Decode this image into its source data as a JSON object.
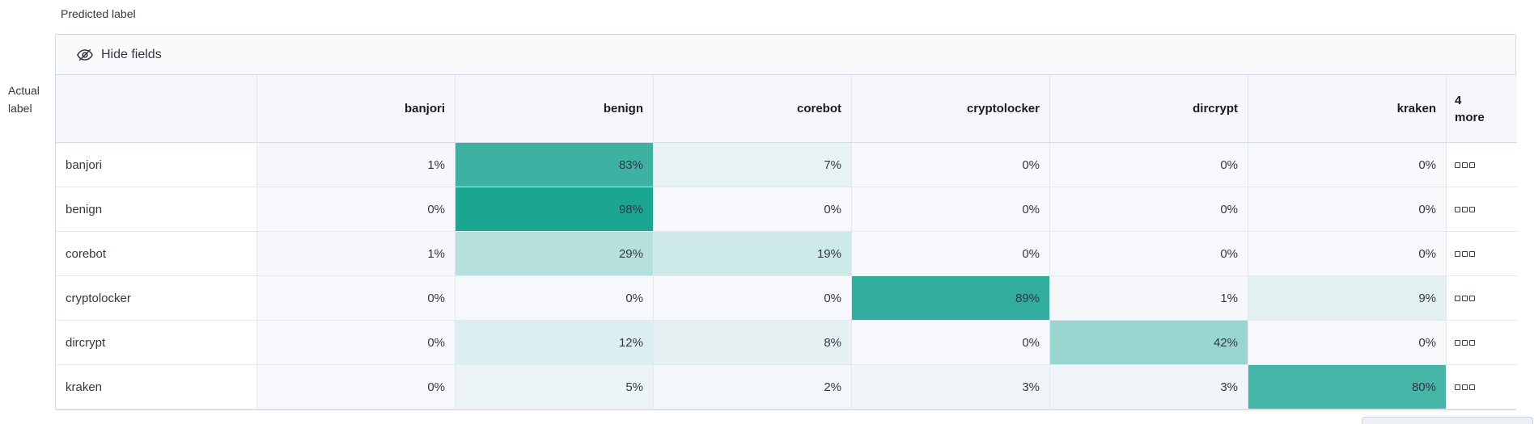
{
  "axes": {
    "predicted": "Predicted label",
    "actual_line1": "Actual",
    "actual_line2": "label"
  },
  "toolbar": {
    "hide_fields_label": "Hide fields"
  },
  "columns": [
    "banjori",
    "benign",
    "corebot",
    "cryptolocker",
    "dircrypt",
    "kraken"
  ],
  "more_column": {
    "count": "4",
    "label": "more"
  },
  "rows": [
    {
      "label": "banjori",
      "values": [
        "1%",
        "83%",
        "7%",
        "0%",
        "0%",
        "0%"
      ]
    },
    {
      "label": "benign",
      "values": [
        "0%",
        "98%",
        "0%",
        "0%",
        "0%",
        "0%"
      ]
    },
    {
      "label": "corebot",
      "values": [
        "1%",
        "29%",
        "19%",
        "0%",
        "0%",
        "0%"
      ]
    },
    {
      "label": "cryptolocker",
      "values": [
        "0%",
        "0%",
        "0%",
        "89%",
        "1%",
        "9%"
      ]
    },
    {
      "label": "dircrypt",
      "values": [
        "0%",
        "12%",
        "8%",
        "0%",
        "42%",
        "0%"
      ]
    },
    {
      "label": "kraken",
      "values": [
        "0%",
        "5%",
        "2%",
        "3%",
        "3%",
        "80%"
      ]
    }
  ],
  "colors": {
    "heatmap_base": "#17A490",
    "cell_background": "#F7F8FC",
    "panel_border": "#D3DAE6"
  },
  "icons": {
    "hide_fields": "eye-closed-icon",
    "row_actions": "boxes-horizontal-icon"
  },
  "chart_data": {
    "type": "heatmap",
    "x_label": "Predicted label",
    "y_label": "Actual label",
    "x_categories": [
      "banjori",
      "benign",
      "corebot",
      "cryptolocker",
      "dircrypt",
      "kraken"
    ],
    "y_categories": [
      "banjori",
      "benign",
      "corebot",
      "cryptolocker",
      "dircrypt",
      "kraken"
    ],
    "values_percent": [
      [
        1,
        83,
        7,
        0,
        0,
        0
      ],
      [
        0,
        98,
        0,
        0,
        0,
        0
      ],
      [
        1,
        29,
        19,
        0,
        0,
        0
      ],
      [
        0,
        0,
        0,
        89,
        1,
        9
      ],
      [
        0,
        12,
        8,
        0,
        42,
        0
      ],
      [
        0,
        5,
        2,
        3,
        3,
        80
      ]
    ],
    "hidden_columns_more_count": 4
  }
}
